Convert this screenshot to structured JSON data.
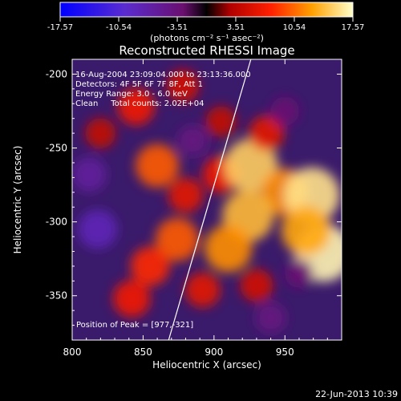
{
  "chart_data": {
    "type": "heatmap",
    "title": "Reconstructed RHESSI Image",
    "xlabel": "Heliocentric X (arcsec)",
    "ylabel": "Heliocentric Y (arcsec)",
    "xlim": [
      800,
      990
    ],
    "ylim": [
      -380,
      -190
    ],
    "x_ticks": [
      800,
      850,
      900,
      950
    ],
    "y_ticks": [
      -200,
      -250,
      -300,
      -350
    ],
    "colorbar": {
      "unit_label": "(photons cm⁻² s⁻¹ asec⁻²)",
      "range": [
        -17.57,
        17.57
      ],
      "ticks": [
        "-17.57",
        "-10.54",
        "-3.51",
        "3.51",
        "10.54",
        "17.57"
      ]
    },
    "annotations": [
      "16-Aug-2004 23:09:04.000 to 23:13:36.000",
      "Detectors: 4F 5F 6F 7F 8F, Att 1",
      "Energy Range: 3.0 - 6.0 keV",
      "Clean     Total counts: 2.02E+04"
    ],
    "peak_label": "Position of Peak = [977,-321]",
    "peak": [
      977,
      -321
    ],
    "limb_line": [
      [
        868,
        -380
      ],
      [
        926,
        -190
      ]
    ],
    "blobs": [
      {
        "x": 820,
        "y": -240,
        "v": 4
      },
      {
        "x": 845,
        "y": -222,
        "v": 7
      },
      {
        "x": 878,
        "y": -208,
        "v": 5
      },
      {
        "x": 905,
        "y": -232,
        "v": 4
      },
      {
        "x": 860,
        "y": -262,
        "v": 10
      },
      {
        "x": 880,
        "y": -282,
        "v": 6
      },
      {
        "x": 905,
        "y": -268,
        "v": 7
      },
      {
        "x": 926,
        "y": -262,
        "v": 15
      },
      {
        "x": 937,
        "y": -240,
        "v": 6
      },
      {
        "x": 950,
        "y": -280,
        "v": 12
      },
      {
        "x": 969,
        "y": -282,
        "v": 16
      },
      {
        "x": 977,
        "y": -321,
        "v": 17
      },
      {
        "x": 965,
        "y": -306,
        "v": 13
      },
      {
        "x": 924,
        "y": -296,
        "v": 14
      },
      {
        "x": 910,
        "y": -318,
        "v": 12
      },
      {
        "x": 874,
        "y": -312,
        "v": 10
      },
      {
        "x": 855,
        "y": -330,
        "v": 8
      },
      {
        "x": 842,
        "y": -352,
        "v": 7
      },
      {
        "x": 892,
        "y": -346,
        "v": 6
      },
      {
        "x": 930,
        "y": -343,
        "v": 5
      },
      {
        "x": 818,
        "y": -305,
        "v": -8
      },
      {
        "x": 812,
        "y": -268,
        "v": -6
      },
      {
        "x": 885,
        "y": -245,
        "v": -4
      },
      {
        "x": 950,
        "y": -225,
        "v": -3
      },
      {
        "x": 940,
        "y": -365,
        "v": -4
      },
      {
        "x": 960,
        "y": -335,
        "v": -3
      }
    ]
  },
  "footer": {
    "date": "22-Jun-2013 10:39"
  }
}
